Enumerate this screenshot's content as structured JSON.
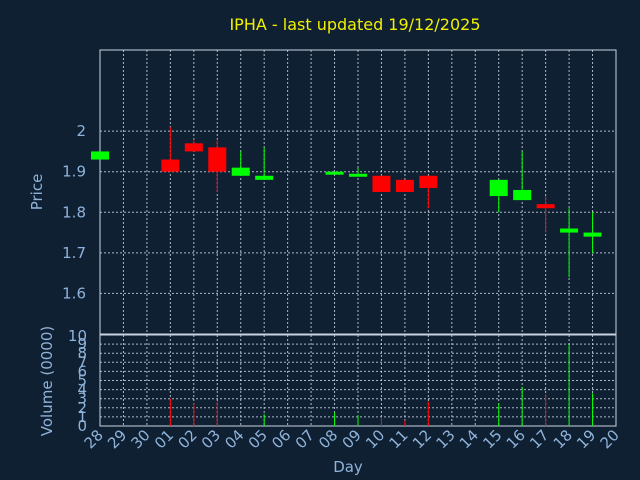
{
  "chart_data": [
    {
      "type": "candlestick",
      "title": "IPHA - last updated 19/12/2025",
      "ylabel": "Price",
      "ylim": [
        1.5,
        2.2
      ],
      "yticks": [
        1.6,
        1.7,
        1.8,
        1.9,
        2
      ],
      "ytick_labels": [
        "1.6",
        "1.7",
        "1.8",
        "1.9",
        "2"
      ],
      "grid": true,
      "categories": [
        "28",
        "29",
        "30",
        "01",
        "02",
        "03",
        "04",
        "05",
        "06",
        "07",
        "08",
        "09",
        "10",
        "11",
        "12",
        "13",
        "14",
        "15",
        "16",
        "17",
        "18",
        "19",
        "20"
      ],
      "candles": [
        {
          "x": "28",
          "open": 1.93,
          "close": 1.95,
          "high": 1.95,
          "low": 1.93
        },
        {
          "x": "01",
          "open": 1.93,
          "close": 1.9,
          "high": 2.01,
          "low": 1.9
        },
        {
          "x": "02",
          "open": 1.97,
          "close": 1.95,
          "high": 1.98,
          "low": 1.95
        },
        {
          "x": "03",
          "open": 1.96,
          "close": 1.9,
          "high": 1.98,
          "low": 1.85
        },
        {
          "x": "04",
          "open": 1.89,
          "close": 1.91,
          "high": 1.95,
          "low": 1.89
        },
        {
          "x": "05",
          "open": 1.88,
          "close": 1.89,
          "high": 1.96,
          "low": 1.88
        },
        {
          "x": "08",
          "open": 1.895,
          "close": 1.9,
          "high": 1.9,
          "low": 1.895
        },
        {
          "x": "09",
          "open": 1.89,
          "close": 1.895,
          "high": 1.91,
          "low": 1.89
        },
        {
          "x": "10",
          "open": 1.89,
          "close": 1.85,
          "high": 1.89,
          "low": 1.85
        },
        {
          "x": "11",
          "open": 1.88,
          "close": 1.85,
          "high": 1.88,
          "low": 1.85
        },
        {
          "x": "12",
          "open": 1.89,
          "close": 1.86,
          "high": 1.89,
          "low": 1.81
        },
        {
          "x": "15",
          "open": 1.84,
          "close": 1.88,
          "high": 1.88,
          "low": 1.8
        },
        {
          "x": "16",
          "open": 1.83,
          "close": 1.855,
          "high": 1.95,
          "low": 1.83
        },
        {
          "x": "17",
          "open": 1.82,
          "close": 1.81,
          "high": 1.84,
          "low": 1.75
        },
        {
          "x": "18",
          "open": 1.75,
          "close": 1.76,
          "high": 1.81,
          "low": 1.64
        },
        {
          "x": "19",
          "open": 1.74,
          "close": 1.75,
          "high": 1.8,
          "low": 1.7
        }
      ],
      "colors": {
        "up": "#00ff00",
        "down": "#ff0000"
      }
    },
    {
      "type": "bar",
      "ylabel": "Volume (0000)",
      "xlabel": "Day",
      "ylim": [
        0,
        10
      ],
      "yticks": [
        0,
        1,
        2,
        3,
        4,
        5,
        6,
        7,
        8,
        9,
        10
      ],
      "ytick_labels": [
        "0",
        "1",
        "2",
        "3",
        "4",
        "5",
        "6",
        "7",
        "8",
        "9",
        "10"
      ],
      "grid": true,
      "categories": [
        "28",
        "29",
        "30",
        "01",
        "02",
        "03",
        "04",
        "05",
        "06",
        "07",
        "08",
        "09",
        "10",
        "11",
        "12",
        "13",
        "14",
        "15",
        "16",
        "17",
        "18",
        "19",
        "20"
      ],
      "bars": [
        {
          "x": "01",
          "value": 3.0,
          "color": "#ff0000"
        },
        {
          "x": "02",
          "value": 2.5,
          "color": "#ff0000"
        },
        {
          "x": "03",
          "value": 2.7,
          "color": "#ff0000"
        },
        {
          "x": "05",
          "value": 1.3,
          "color": "#00ff00"
        },
        {
          "x": "08",
          "value": 1.5,
          "color": "#00ff00"
        },
        {
          "x": "09",
          "value": 1.2,
          "color": "#00ff00"
        },
        {
          "x": "10",
          "value": 1.0,
          "color": "#ff0000"
        },
        {
          "x": "11",
          "value": 0.6,
          "color": "#ff0000"
        },
        {
          "x": "12",
          "value": 2.7,
          "color": "#ff0000"
        },
        {
          "x": "15",
          "value": 2.5,
          "color": "#00ff00"
        },
        {
          "x": "16",
          "value": 4.3,
          "color": "#00ff00"
        },
        {
          "x": "17",
          "value": 3.5,
          "color": "#ff0000"
        },
        {
          "x": "18",
          "value": 9.0,
          "color": "#00ff00"
        },
        {
          "x": "19",
          "value": 3.6,
          "color": "#00ff00"
        }
      ]
    }
  ]
}
